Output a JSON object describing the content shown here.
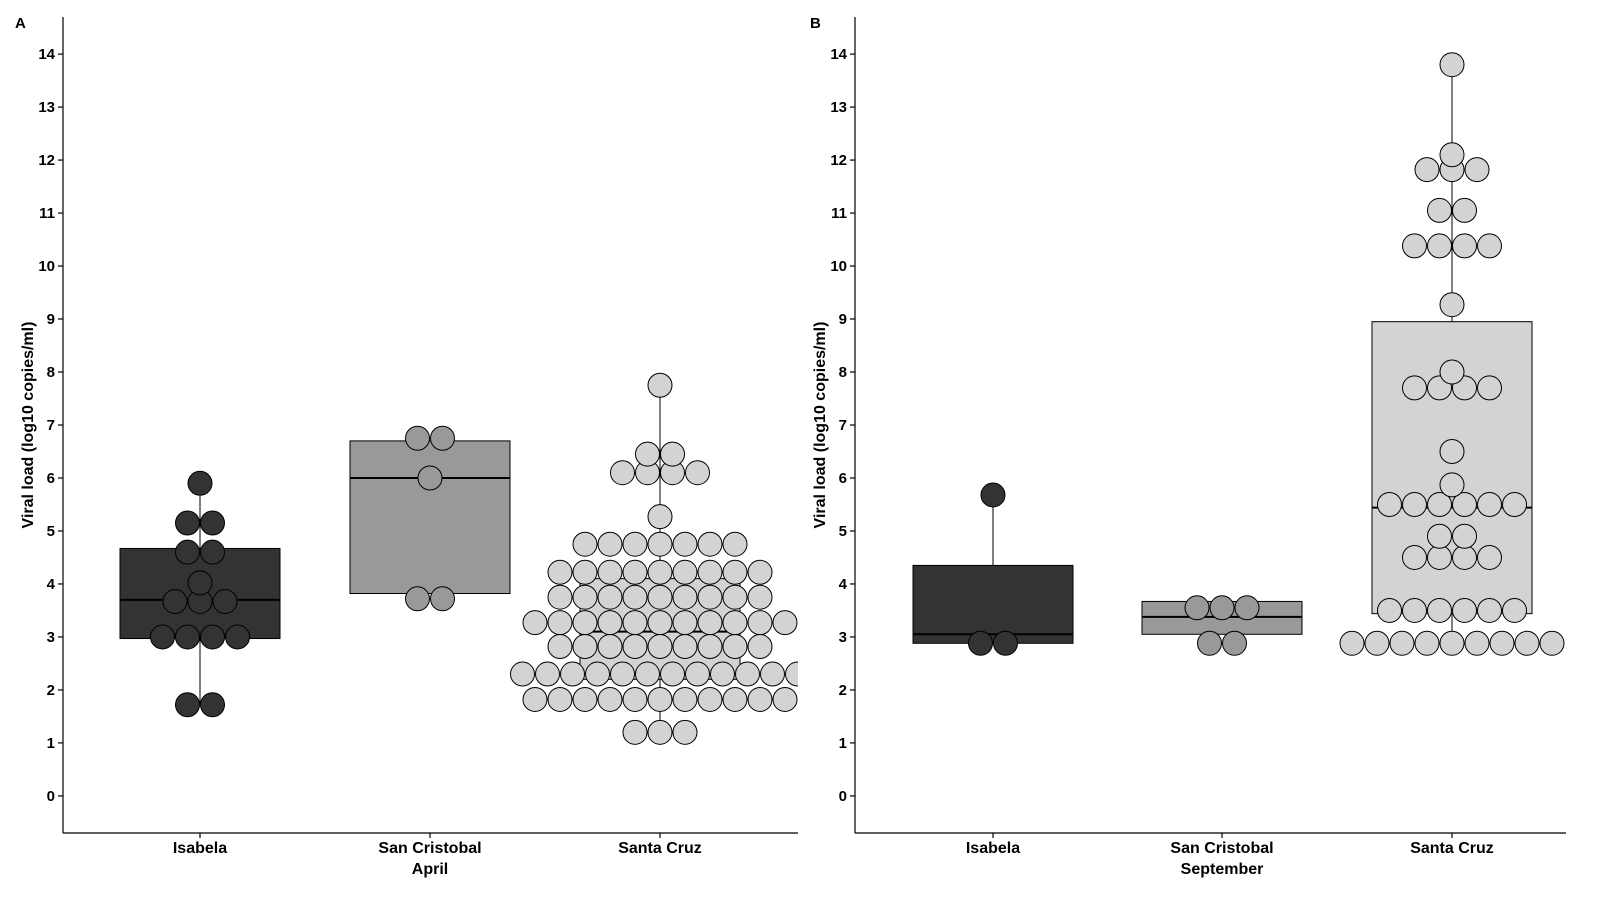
{
  "chart_data": [
    {
      "panel": "A",
      "type": "box+dotplot",
      "xlabel": "April",
      "ylabel": "Viral load (log10 copies/ml)",
      "ylim": [
        -0.7,
        14.7
      ],
      "yticks": [
        "0",
        "1",
        "2",
        "3",
        "4",
        "5",
        "6",
        "7",
        "8",
        "9",
        "10",
        "11",
        "12",
        "13",
        "14"
      ],
      "series": [
        {
          "name": "Isabela",
          "color": "#333333",
          "box": {
            "q1": 2.97,
            "median": 3.7,
            "q3": 4.67,
            "whisker_low": 1.72,
            "whisker_high": 5.9
          },
          "points": [
            1.72,
            1.72,
            3.0,
            3.0,
            3.0,
            3.0,
            3.67,
            3.67,
            3.67,
            4.02,
            4.6,
            4.6,
            5.15,
            5.15,
            5.9
          ]
        },
        {
          "name": "San Cristobal",
          "color": "#999999",
          "box": {
            "q1": 3.82,
            "median": 6.0,
            "q3": 6.7,
            "whisker_low": 3.82,
            "whisker_high": 6.7
          },
          "points": [
            3.72,
            3.72,
            6.0,
            6.75,
            6.75
          ]
        },
        {
          "name": "Santa Cruz",
          "color": "#d3d3d3",
          "box": {
            "q1": 2.2,
            "median": 3.1,
            "q3": 4.1,
            "whisker_low": 1.2,
            "whisker_high": 7.75
          },
          "points": [
            1.2,
            1.2,
            1.2,
            1.82,
            1.82,
            1.82,
            1.82,
            1.82,
            1.82,
            1.82,
            1.82,
            1.82,
            1.82,
            1.82,
            2.3,
            2.3,
            2.3,
            2.3,
            2.3,
            2.3,
            2.3,
            2.3,
            2.3,
            2.3,
            2.3,
            2.3,
            2.82,
            2.82,
            2.82,
            2.82,
            2.82,
            2.82,
            2.82,
            2.82,
            2.82,
            3.27,
            3.27,
            3.27,
            3.27,
            3.27,
            3.27,
            3.27,
            3.27,
            3.27,
            3.27,
            3.27,
            3.75,
            3.75,
            3.75,
            3.75,
            3.75,
            3.75,
            3.75,
            3.75,
            3.75,
            4.22,
            4.22,
            4.22,
            4.22,
            4.22,
            4.22,
            4.22,
            4.22,
            4.22,
            4.75,
            4.75,
            4.75,
            4.75,
            4.75,
            4.75,
            4.75,
            5.27,
            6.1,
            6.1,
            6.1,
            6.1,
            6.45,
            6.45,
            7.75
          ]
        }
      ]
    },
    {
      "panel": "B",
      "type": "box+dotplot",
      "xlabel": "September",
      "ylabel": "Viral load (log10 copies/ml)",
      "ylim": [
        -0.7,
        14.7
      ],
      "yticks": [
        "0",
        "1",
        "2",
        "3",
        "4",
        "5",
        "6",
        "7",
        "8",
        "9",
        "10",
        "11",
        "12",
        "13",
        "14"
      ],
      "series": [
        {
          "name": "Isabela",
          "color": "#333333",
          "box": {
            "q1": 2.88,
            "median": 3.05,
            "q3": 4.35,
            "whisker_low": 2.88,
            "whisker_high": 5.68
          },
          "points": [
            2.88,
            2.88,
            5.68
          ]
        },
        {
          "name": "San Cristobal",
          "color": "#999999",
          "box": {
            "q1": 3.05,
            "median": 3.38,
            "q3": 3.67,
            "whisker_low": 3.05,
            "whisker_high": 3.67
          },
          "points": [
            2.88,
            2.88,
            3.55,
            3.55,
            3.55
          ]
        },
        {
          "name": "Santa Cruz",
          "color": "#d3d3d3",
          "box": {
            "q1": 3.44,
            "median": 5.44,
            "q3": 8.95,
            "whisker_low": 2.88,
            "whisker_high": 13.8
          },
          "points": [
            2.88,
            2.88,
            2.88,
            2.88,
            2.88,
            2.88,
            2.88,
            2.88,
            2.88,
            3.5,
            3.5,
            3.5,
            3.5,
            3.5,
            3.5,
            4.5,
            4.5,
            4.5,
            4.5,
            4.9,
            4.9,
            5.5,
            5.5,
            5.5,
            5.5,
            5.5,
            5.5,
            5.87,
            6.5,
            7.7,
            7.7,
            7.7,
            7.7,
            8.0,
            9.27,
            10.38,
            10.38,
            10.38,
            10.38,
            11.05,
            11.05,
            11.82,
            11.82,
            11.82,
            12.1,
            13.8
          ]
        }
      ]
    }
  ]
}
